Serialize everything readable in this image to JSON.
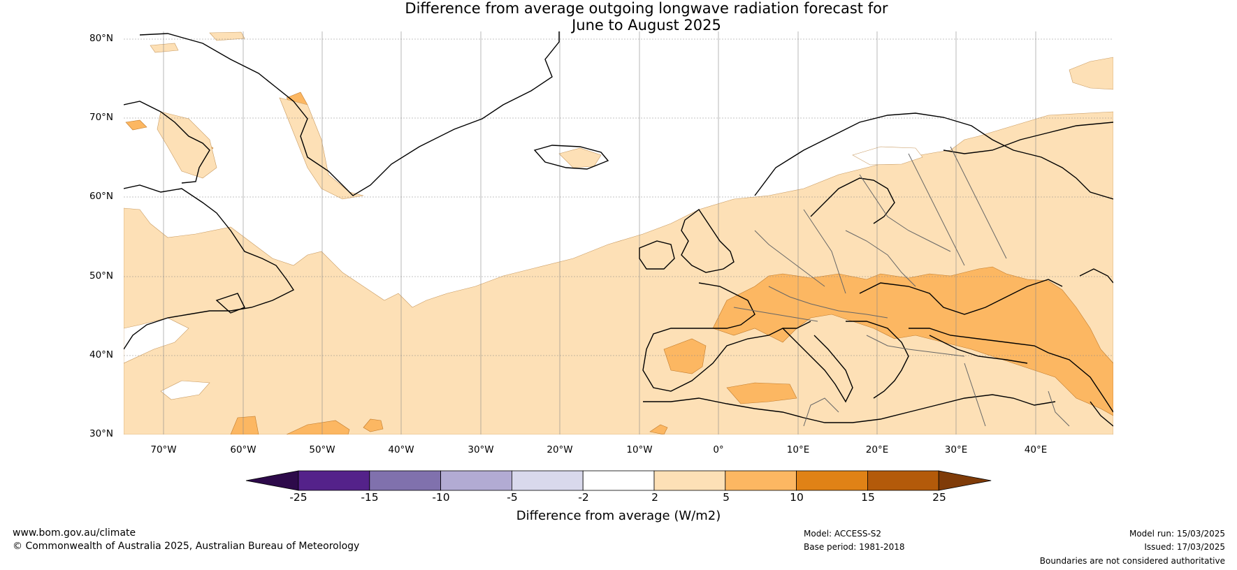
{
  "title": {
    "line1": "Difference from average outgoing longwave radiation forecast for",
    "line2": "June to August 2025"
  },
  "axes": {
    "lat_labels": [
      "80°N",
      "70°N",
      "60°N",
      "50°N",
      "40°N",
      "30°N"
    ],
    "lon_labels": [
      "70°W",
      "60°W",
      "50°W",
      "40°W",
      "30°W",
      "20°W",
      "10°W",
      "0°",
      "10°E",
      "20°E",
      "30°E",
      "40°E"
    ]
  },
  "colorbar": {
    "ticks": [
      "-25",
      "-15",
      "-10",
      "-5",
      "-2",
      "2",
      "5",
      "10",
      "15",
      "25"
    ],
    "colors": [
      "#2d0a4a",
      "#54228a",
      "#8071ad",
      "#b2abd3",
      "#d9d9ec",
      "#ffffff",
      "#fde0b6",
      "#fcb762",
      "#e08216",
      "#b35a0a",
      "#7f3b08"
    ],
    "label": "Difference from average (W/m2)"
  },
  "footer": {
    "website": "www.bom.gov.au/climate",
    "copyright": "© Commonwealth of Australia 2025, Australian Bureau of Meteorology",
    "model": "Model: ACCESS-S2",
    "base_period": "Base period: 1981-2018",
    "model_run": "Model run: 15/03/2025",
    "issued": "Issued: 17/03/2025",
    "disclaimer": "Boundaries are not considered authoritative"
  }
}
